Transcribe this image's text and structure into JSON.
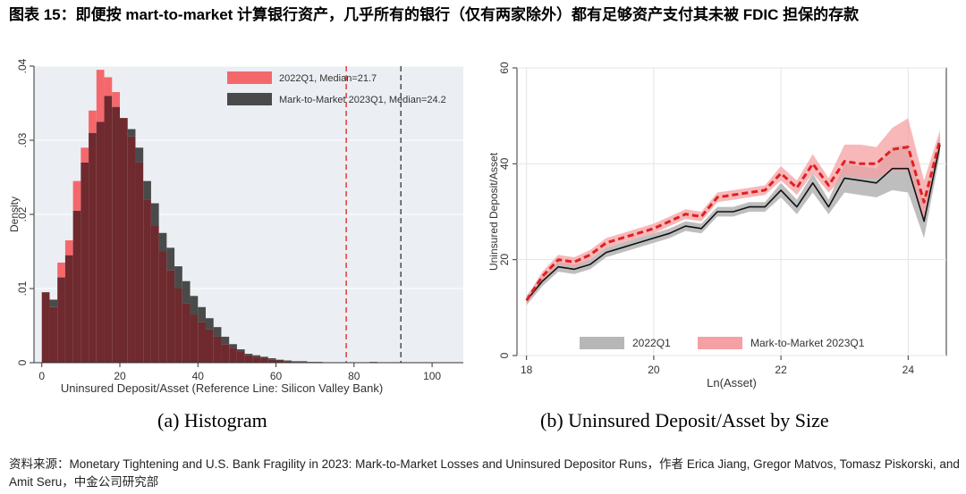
{
  "figure": {
    "title": "图表 15：即便按 mart-to-market 计算银行资产，几乎所有的银行（仅有两家除外）都有足够资产支付其未被 FDIC 担保的存款",
    "source": "资料来源：Monetary Tightening and U.S. Bank Fragility in 2023: Mark-to-Market Losses and Uninsured Depositor Runs，作者 Erica Jiang, Gregor Matvos, Tomasz Piskorski, and Amit Seru，中金公司研究部"
  },
  "colors": {
    "red_fill": "#f4686c",
    "dark_fill": "#4a4a4a",
    "overlap": "#6e2a2e",
    "red_line": "#e02020",
    "grey_band": "#b7b7b7",
    "pink_band": "#f5a0a3",
    "bg": "#ebeff4",
    "grid": "#ffffff"
  },
  "chart_data": [
    {
      "type": "bar",
      "caption": "(a) Histogram",
      "xlabel": "Uninsured Deposit/Asset (Reference Line: Silicon Valley Bank)",
      "ylabel": "Density",
      "xlim": [
        -2,
        108
      ],
      "ylim": [
        0,
        0.04
      ],
      "xticks": [
        0,
        20,
        40,
        60,
        80,
        100
      ],
      "xtick_labels": [
        "0",
        "20",
        "40",
        "60",
        "80",
        "100"
      ],
      "yticks": [
        0,
        0.01,
        0.02,
        0.03,
        0.04
      ],
      "ytick_labels": [
        "0",
        ".01",
        ".02",
        ".03",
        ".04"
      ],
      "bin_width": 2,
      "bin_start": 0,
      "reference_lines": [
        {
          "x": 78,
          "color": "red",
          "style": "dashed"
        },
        {
          "x": 92,
          "color": "dark",
          "style": "dashed"
        }
      ],
      "series": [
        {
          "name": "2022Q1, Median=21.7",
          "values": [
            0.0095,
            0.0075,
            0.0135,
            0.0165,
            0.0245,
            0.029,
            0.034,
            0.0395,
            0.0385,
            0.0365,
            0.033,
            0.0305,
            0.027,
            0.022,
            0.0185,
            0.015,
            0.0125,
            0.01,
            0.008,
            0.0065,
            0.0055,
            0.0045,
            0.0035,
            0.0025,
            0.002,
            0.0015,
            0.001,
            0.0008,
            0.0006,
            0.0004,
            0.0003,
            0.0002,
            0.0001,
            0.0001,
            0.0001,
            0,
            0,
            0,
            0,
            0,
            0,
            0,
            0,
            0,
            0,
            0,
            0,
            0,
            0,
            0,
            0,
            0,
            0,
            0
          ]
        },
        {
          "name": "Mark-to-Market 2023Q1, Median=24.2",
          "values": [
            0.0095,
            0.0085,
            0.0115,
            0.0145,
            0.0205,
            0.027,
            0.031,
            0.0325,
            0.036,
            0.0345,
            0.033,
            0.0315,
            0.029,
            0.0245,
            0.0215,
            0.0175,
            0.0155,
            0.013,
            0.011,
            0.009,
            0.0075,
            0.006,
            0.0048,
            0.0035,
            0.0025,
            0.0018,
            0.0012,
            0.001,
            0.0008,
            0.0006,
            0.0004,
            0.0003,
            0.0002,
            0.0002,
            0.0001,
            0.0001,
            0,
            0,
            0,
            0,
            0,
            0,
            0.0001,
            0,
            0,
            0,
            0,
            0,
            0,
            0,
            0,
            0,
            0,
            0
          ]
        }
      ]
    },
    {
      "type": "line",
      "caption": "(b) Uninsured Deposit/Asset by Size",
      "xlabel": "Ln(Asset)",
      "ylabel": "Uninsured Deposit/Asset",
      "xlim": [
        17.85,
        24.6
      ],
      "ylim": [
        0,
        60
      ],
      "xticks": [
        18,
        20,
        22,
        24
      ],
      "xtick_labels": [
        "18",
        "20",
        "22",
        "24"
      ],
      "yticks": [
        0,
        20,
        40,
        60
      ],
      "ytick_labels": [
        "0",
        "20",
        "40",
        "60"
      ],
      "x": [
        18.0,
        18.25,
        18.5,
        18.75,
        19.0,
        19.25,
        19.5,
        19.75,
        20.0,
        20.25,
        20.5,
        20.75,
        21.0,
        21.25,
        21.5,
        21.75,
        22.0,
        22.25,
        22.5,
        22.75,
        23.0,
        23.25,
        23.5,
        23.75,
        24.0,
        24.25,
        24.5
      ],
      "series": [
        {
          "name": "2022Q1",
          "values": [
            11.5,
            15.5,
            18.5,
            18.0,
            19.0,
            21.5,
            22.5,
            23.5,
            24.5,
            25.5,
            27.0,
            26.5,
            30.0,
            30.0,
            31.0,
            31.0,
            34.5,
            31.0,
            36.0,
            31.0,
            37.0,
            36.5,
            36.0,
            39.0,
            39.0,
            28.0,
            44.0
          ],
          "lower": [
            10.5,
            14.5,
            17.5,
            17.0,
            18.0,
            20.5,
            21.5,
            22.5,
            23.5,
            24.5,
            26.0,
            25.5,
            29.0,
            29.0,
            30.0,
            30.0,
            33.0,
            29.5,
            34.0,
            29.5,
            34.0,
            33.5,
            33.0,
            34.5,
            34.0,
            24.5,
            42.0
          ],
          "upper": [
            12.5,
            16.5,
            19.5,
            19.0,
            20.0,
            22.5,
            23.5,
            24.5,
            25.5,
            26.5,
            28.0,
            27.5,
            31.0,
            31.0,
            32.0,
            32.0,
            36.0,
            32.5,
            38.0,
            32.5,
            40.0,
            39.5,
            39.0,
            43.5,
            44.0,
            31.5,
            46.0
          ]
        },
        {
          "name": "Mark-to-Market 2023Q1",
          "values": [
            11.5,
            16.5,
            20.0,
            19.5,
            21.0,
            23.5,
            24.5,
            25.5,
            26.5,
            28.0,
            29.5,
            29.0,
            33.0,
            33.5,
            34.0,
            34.5,
            38.0,
            35.0,
            40.0,
            35.5,
            40.5,
            40.0,
            40.0,
            43.0,
            43.5,
            32.0,
            45.0
          ],
          "lower": [
            10.8,
            15.5,
            19.0,
            18.5,
            20.0,
            22.5,
            23.5,
            24.5,
            25.5,
            27.0,
            28.5,
            28.0,
            32.0,
            32.5,
            33.0,
            33.5,
            36.5,
            33.5,
            38.0,
            34.0,
            37.5,
            37.0,
            37.0,
            38.5,
            38.5,
            28.5,
            43.0
          ],
          "upper": [
            12.2,
            17.5,
            21.0,
            20.5,
            22.0,
            24.5,
            25.5,
            26.5,
            27.5,
            29.0,
            30.5,
            30.0,
            34.0,
            34.5,
            35.0,
            35.5,
            39.5,
            36.5,
            42.0,
            37.0,
            44.0,
            44.0,
            43.5,
            47.5,
            49.5,
            36.5,
            47.0
          ]
        }
      ]
    }
  ]
}
